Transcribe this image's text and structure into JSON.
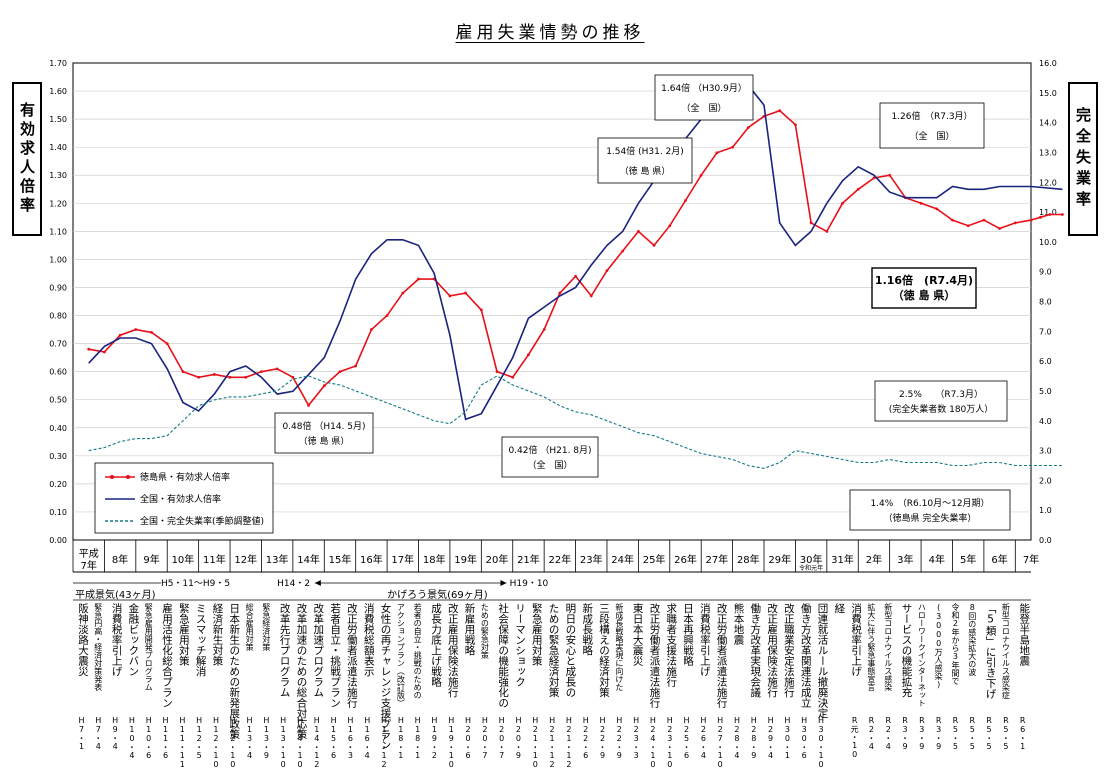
{
  "chart_data": {
    "type": "line",
    "title": "雇用失業情勢の推移",
    "left_axis_label": "有効求人倍率",
    "right_axis_label": "完全失業率",
    "left_ylim": [
      0,
      1.7
    ],
    "right_ylim": [
      0,
      16
    ],
    "left_ticks": [
      "0.00",
      "0.10",
      "0.20",
      "0.30",
      "0.40",
      "0.50",
      "0.60",
      "0.70",
      "0.80",
      "0.90",
      "1.00",
      "1.10",
      "1.20",
      "1.30",
      "1.40",
      "1.50",
      "1.60",
      "1.70"
    ],
    "right_ticks": [
      "0.0",
      "1.0",
      "2.0",
      "3.0",
      "4.0",
      "5.0",
      "6.0",
      "7.0",
      "8.0",
      "9.0",
      "10.0",
      "11.0",
      "12.0",
      "13.0",
      "14.0",
      "15.0",
      "16.0"
    ],
    "x_labels": [
      "平成\n7年",
      "8年",
      "9年",
      "10年",
      "11年",
      "12年",
      "13年",
      "14年",
      "15年",
      "16年",
      "17年",
      "18年",
      "19年",
      "20年",
      "21年",
      "22年",
      "23年",
      "24年",
      "25年",
      "26年",
      "27年",
      "28年",
      "29年",
      "30年",
      "31年",
      "2年",
      "3年",
      "4年",
      "5年",
      "6年",
      "7年"
    ],
    "x_sublabel": "令和元年",
    "grid": true,
    "legend_position": "bottom-left",
    "series": [
      {
        "name": "徳島県・有効求人倍率",
        "color": "#e8101a",
        "axis": "left",
        "x": [
          0,
          0.5,
          1,
          1.5,
          2,
          2.5,
          3,
          3.5,
          4,
          4.5,
          5,
          5.5,
          6,
          6.5,
          7,
          7.5,
          8,
          8.5,
          9,
          9.5,
          10,
          10.5,
          11,
          11.5,
          12,
          12.5,
          13,
          13.5,
          14,
          14.5,
          15,
          15.5,
          16,
          16.5,
          17,
          17.5,
          18,
          18.5,
          19,
          19.5,
          20,
          20.5,
          21,
          21.5,
          22,
          22.5,
          23,
          23.5,
          24,
          24.5,
          25,
          25.5,
          26,
          26.5,
          27,
          27.5,
          28,
          28.5,
          29,
          29.5,
          30,
          30.3,
          30.6,
          31
        ],
        "values": [
          0.68,
          0.67,
          0.73,
          0.75,
          0.74,
          0.7,
          0.6,
          0.58,
          0.59,
          0.58,
          0.58,
          0.6,
          0.61,
          0.58,
          0.48,
          0.55,
          0.6,
          0.62,
          0.75,
          0.8,
          0.88,
          0.93,
          0.93,
          0.87,
          0.88,
          0.82,
          0.6,
          0.58,
          0.66,
          0.75,
          0.88,
          0.94,
          0.87,
          0.96,
          1.03,
          1.1,
          1.05,
          1.12,
          1.21,
          1.3,
          1.38,
          1.4,
          1.47,
          1.51,
          1.53,
          1.48,
          1.13,
          1.1,
          1.2,
          1.25,
          1.29,
          1.3,
          1.22,
          1.2,
          1.18,
          1.14,
          1.12,
          1.14,
          1.11,
          1.13,
          1.14,
          1.15,
          1.16,
          1.16
        ]
      },
      {
        "name": "全国・有効求人倍率",
        "color": "#1a237e",
        "axis": "left",
        "x": [
          0,
          0.5,
          1,
          1.5,
          2,
          2.5,
          3,
          3.5,
          4,
          4.5,
          5,
          5.5,
          6,
          6.5,
          7,
          7.5,
          8,
          8.5,
          9,
          9.5,
          10,
          10.5,
          11,
          11.5,
          12,
          12.5,
          13,
          13.5,
          14,
          14.5,
          15,
          15.5,
          16,
          16.5,
          17,
          17.5,
          18,
          18.5,
          19,
          19.5,
          20,
          20.5,
          21,
          21.5,
          22,
          22.5,
          23,
          23.5,
          24,
          24.5,
          25,
          25.5,
          26,
          26.5,
          27,
          27.5,
          28,
          28.5,
          29,
          29.5,
          30,
          31
        ],
        "values": [
          0.63,
          0.69,
          0.72,
          0.72,
          0.7,
          0.61,
          0.49,
          0.46,
          0.52,
          0.6,
          0.62,
          0.58,
          0.52,
          0.53,
          0.59,
          0.65,
          0.78,
          0.93,
          1.02,
          1.07,
          1.07,
          1.05,
          0.95,
          0.73,
          0.43,
          0.45,
          0.55,
          0.65,
          0.79,
          0.83,
          0.87,
          0.9,
          0.98,
          1.05,
          1.1,
          1.2,
          1.28,
          1.36,
          1.43,
          1.5,
          1.57,
          1.63,
          1.62,
          1.55,
          1.13,
          1.05,
          1.1,
          1.2,
          1.28,
          1.33,
          1.3,
          1.24,
          1.22,
          1.22,
          1.22,
          1.26,
          1.25,
          1.25,
          1.26,
          1.26,
          1.26,
          1.25
        ]
      },
      {
        "name": "全国・完全失業率(季節調整値)",
        "color": "#127a85",
        "axis": "right",
        "dashed": true,
        "x": [
          0,
          0.5,
          1,
          1.5,
          2,
          2.5,
          3,
          3.5,
          4,
          4.5,
          5,
          5.5,
          6,
          6.5,
          7,
          7.5,
          8,
          8.5,
          9,
          9.5,
          10,
          10.5,
          11,
          11.5,
          12,
          12.5,
          13,
          13.5,
          14,
          14.5,
          15,
          15.5,
          16,
          16.5,
          17,
          17.5,
          18,
          18.5,
          19,
          19.5,
          20,
          20.5,
          21,
          21.5,
          22,
          22.5,
          23,
          23.5,
          24,
          24.5,
          25,
          25.5,
          26,
          26.5,
          27,
          27.5,
          28,
          28.5,
          29,
          29.5,
          30,
          31
        ],
        "values": [
          3.0,
          3.1,
          3.3,
          3.4,
          3.4,
          3.5,
          4.0,
          4.5,
          4.7,
          4.8,
          4.8,
          4.9,
          5.0,
          5.4,
          5.5,
          5.3,
          5.2,
          5.0,
          4.8,
          4.6,
          4.4,
          4.2,
          4.0,
          3.9,
          4.3,
          5.2,
          5.5,
          5.2,
          5.0,
          4.8,
          4.5,
          4.3,
          4.2,
          4.0,
          3.8,
          3.6,
          3.5,
          3.3,
          3.1,
          2.9,
          2.8,
          2.7,
          2.5,
          2.4,
          2.6,
          3.0,
          2.9,
          2.8,
          2.7,
          2.6,
          2.6,
          2.7,
          2.6,
          2.6,
          2.6,
          2.5,
          2.5,
          2.6,
          2.6,
          2.5,
          2.5,
          2.5
        ]
      }
    ],
    "annotations": [
      {
        "value": "1.64倍 （H30.9月）",
        "sub": "（全　国）"
      },
      {
        "value": "1.54倍 (H31. 2月)",
        "sub": "（徳 島 県）"
      },
      {
        "value": "1.26倍　（R7.3月）",
        "sub": "（全　国）"
      },
      {
        "value": "1.16倍　(R7.4月)",
        "sub": "（徳 島 県）"
      },
      {
        "value": "0.48倍 （H14. 5月)",
        "sub": "（徳 島 県）"
      },
      {
        "value": "0.42倍 （H21. 8月)",
        "sub": "（全　国）"
      },
      {
        "value": "2.5%　　（R7.3月）",
        "sub": "(完全失業者数 180万人）"
      },
      {
        "value": "1.4%　（R6.10月～12月期）",
        "sub": "（徳島県 完全失業率）"
      }
    ],
    "periods": [
      {
        "label": "平成景気(43ヶ月)",
        "sub": "H5・11～H9・5"
      },
      {
        "label": "H14・2"
      },
      {
        "label": "かげろう景気(69ヶ月)",
        "sub": "H19・10"
      }
    ],
    "events": [
      {
        "text": "阪神淡路大震災",
        "date": "H7・1",
        "size": "n"
      },
      {
        "text": "緊急円高・経済対策発表",
        "date": "H7・4",
        "size": "s"
      },
      {
        "text": "消費税率引上げ",
        "date": "H9・4",
        "size": "n"
      },
      {
        "text": "金融ビックバン",
        "date": "H10・4",
        "size": "n"
      },
      {
        "text": "緊急雇用開発プログラム",
        "date": "H10・6",
        "size": "s"
      },
      {
        "text": "雇用活性化総合プラン",
        "date": "H11・6",
        "size": "n"
      },
      {
        "text": "緊急雇用対策",
        "date": "H11・11",
        "size": "n"
      },
      {
        "text": "ミスマッチ解消",
        "date": "H12・5",
        "size": "n"
      },
      {
        "text": "経済新生対策",
        "date": "H12・10",
        "size": "n"
      },
      {
        "text": "日本新生のための新発展政策",
        "date": "H12・10",
        "size": "n"
      },
      {
        "text": "総合雇用対策",
        "date": "H13・4",
        "size": "s"
      },
      {
        "text": "緊急経済対策",
        "date": "H13・9",
        "size": "s"
      },
      {
        "text": "改革先行プログラム",
        "date": "H13・10",
        "size": "n"
      },
      {
        "text": "改革加速のための総合対応策",
        "date": "H14・10",
        "size": "n"
      },
      {
        "text": "改革加速プログラム",
        "date": "H14・12",
        "size": "n"
      },
      {
        "text": "若者自立・挑戦プラン",
        "date": "H15・6",
        "size": "n"
      },
      {
        "text": "改正労働者派遣法施行",
        "date": "H16・3",
        "size": "n"
      },
      {
        "text": "消費税総額表示",
        "date": "H16・4",
        "size": "n"
      },
      {
        "text": "女性の再チャレンジ支援プラン",
        "date": "H17・12",
        "size": "n"
      },
      {
        "text": "アクションプラン（改訂版）",
        "date": "H18・1",
        "size": "s"
      },
      {
        "text": "若者の自立・挑戦のための",
        "date": "H18・1",
        "size": "s"
      },
      {
        "text": "成長力底上げ戦略",
        "date": "H19・2",
        "size": "n"
      },
      {
        "text": "改正雇用保険法施行",
        "date": "H19・10",
        "size": "n"
      },
      {
        "text": "新雇用戦略",
        "date": "H20・6",
        "size": "n"
      },
      {
        "text": "ための緊急対策",
        "date": "H20・7",
        "size": "s"
      },
      {
        "text": "社会保障の機能強化の",
        "date": "H20・7",
        "size": "n"
      },
      {
        "text": "リーマンショック",
        "date": "H20・9",
        "size": "n"
      },
      {
        "text": "緊急雇用対策",
        "date": "H21・10",
        "size": "n"
      },
      {
        "text": "ための緊急経済対策",
        "date": "H21・12",
        "size": "n"
      },
      {
        "text": "明日の安心と成長の",
        "date": "H21・12",
        "size": "n"
      },
      {
        "text": "新成長戦略",
        "date": "H22・6",
        "size": "n"
      },
      {
        "text": "三段構えの経済対策",
        "date": "H22・9",
        "size": "n"
      },
      {
        "text": "新成長戦略実現に向けた",
        "date": "H22・9",
        "size": "s"
      },
      {
        "text": "東日本大震災",
        "date": "H23・3",
        "size": "n"
      },
      {
        "text": "改正労働者派遣法施行",
        "date": "H24・10",
        "size": "n"
      },
      {
        "text": "求職者支援法施行",
        "date": "H23・10",
        "size": "n"
      },
      {
        "text": "日本再興戦略",
        "date": "H25・6",
        "size": "n"
      },
      {
        "text": "消費税率引上げ",
        "date": "H26・4",
        "size": "n"
      },
      {
        "text": "改正労働者派遣法施行",
        "date": "H27・10",
        "size": "n"
      },
      {
        "text": "熊本地震",
        "date": "H28・4",
        "size": "n"
      },
      {
        "text": "働き方改革実現会議",
        "date": "H28・9",
        "size": "n"
      },
      {
        "text": "改正雇用保険法施行",
        "date": "H29・4",
        "size": "n"
      },
      {
        "text": "改正職業安定法施行",
        "date": "H30・1",
        "size": "n"
      },
      {
        "text": "働き方改革関連法成立",
        "date": "H30・6",
        "size": "n"
      },
      {
        "text": "団連就活ルール撤廃決定",
        "date": "H30・10",
        "size": "n"
      },
      {
        "text": "経",
        "date": "",
        "size": "n"
      },
      {
        "text": "消費税率引上げ",
        "date": "R元・10",
        "size": "n"
      },
      {
        "text": "拡大に伴う緊急事態宣言",
        "date": "R2・4",
        "size": "s"
      },
      {
        "text": "新型コロナウイルス感染",
        "date": "R2・4",
        "size": "s"
      },
      {
        "text": "サービスの機能拡充",
        "date": "R3・9",
        "size": "n"
      },
      {
        "text": "ハローワークインターネット",
        "date": "R3・9",
        "size": "s"
      },
      {
        "text": "(3000万人感染)",
        "date": "R3・9",
        "size": "s"
      },
      {
        "text": "令和2年から3年間で",
        "date": "R5・5",
        "size": "s"
      },
      {
        "text": "8回の感染拡大の波",
        "date": "R5・5",
        "size": "s"
      },
      {
        "text": "「5類」に引き下げ",
        "date": "R5・5",
        "size": "n"
      },
      {
        "text": "新型コロナウイルス感染症",
        "date": "R5・5",
        "size": "s"
      },
      {
        "text": "能登半島地震",
        "date": "R6・1",
        "size": "n"
      }
    ]
  }
}
